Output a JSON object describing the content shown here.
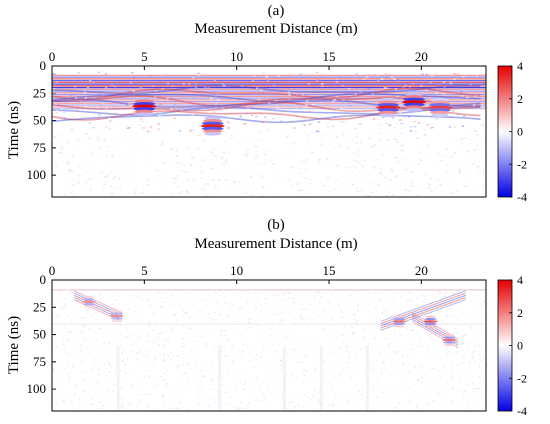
{
  "chart_data": [
    {
      "type": "heatmap",
      "panel_label": "(a)",
      "title": "",
      "xlabel": "Measurement Distance (m)",
      "ylabel": "Time (ns)",
      "x_ticks": [
        0,
        5,
        10,
        15,
        20
      ],
      "y_ticks": [
        0,
        25,
        50,
        75,
        100
      ],
      "xlim": [
        0,
        23.5
      ],
      "ylim": [
        0,
        120
      ],
      "y_inverted": true,
      "x_axis_position": "top",
      "colorbar": {
        "ticks": [
          4,
          2,
          0,
          -2,
          -4
        ],
        "range": [
          -4,
          4
        ],
        "colormap": "blue-white-red"
      },
      "features": [
        {
          "x": 5.0,
          "t": 37,
          "amplitude": 4
        },
        {
          "x": 8.7,
          "t": 55,
          "amplitude": 3.5
        },
        {
          "x": 18.2,
          "t": 38,
          "amplitude": 3.5
        },
        {
          "x": 19.6,
          "t": 33,
          "amplitude": 4
        },
        {
          "x": 21.0,
          "t": 38,
          "amplitude": 3
        }
      ]
    },
    {
      "type": "heatmap",
      "panel_label": "(b)",
      "title": "",
      "xlabel": "Measurement Distance (m)",
      "ylabel": "Time (ns)",
      "x_ticks": [
        0,
        5,
        10,
        15,
        20
      ],
      "y_ticks": [
        0,
        25,
        50,
        75,
        100
      ],
      "xlim": [
        0,
        23.5
      ],
      "ylim": [
        0,
        120
      ],
      "y_inverted": true,
      "x_axis_position": "top",
      "colorbar": {
        "ticks": [
          4,
          2,
          0,
          -2,
          -4
        ],
        "range": [
          -4,
          4
        ],
        "colormap": "blue-white-red"
      },
      "features": [
        {
          "x": 2.0,
          "t": 20,
          "amplitude": 2
        },
        {
          "x": 3.5,
          "t": 33,
          "amplitude": 2
        },
        {
          "x": 18.8,
          "t": 38,
          "amplitude": 2.5
        },
        {
          "x": 20.5,
          "t": 38,
          "amplitude": 3
        },
        {
          "x": 21.5,
          "t": 55,
          "amplitude": 2.5
        }
      ]
    }
  ]
}
